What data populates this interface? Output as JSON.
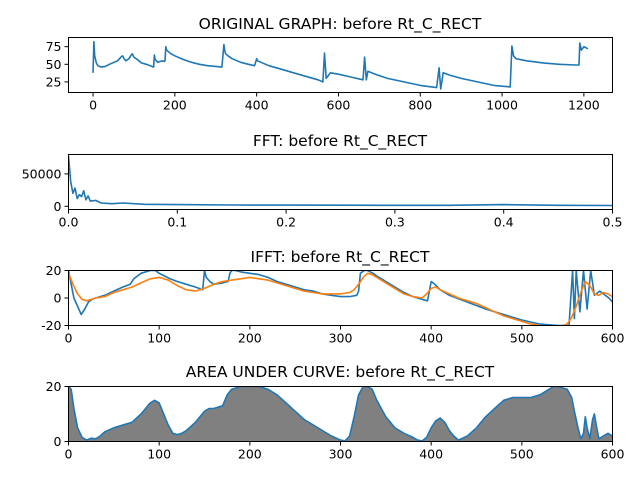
{
  "chart_data": [
    {
      "type": "line",
      "title": "ORIGINAL GRAPH: before Rt_C_RECT",
      "xlim": [
        -60,
        1270
      ],
      "ylim": [
        10,
        88
      ],
      "xticks": [
        0,
        200,
        400,
        600,
        800,
        1000,
        1200
      ],
      "yticks": [
        25,
        50,
        75
      ],
      "series": [
        {
          "color": "#1f77b4",
          "x": [
            0,
            2,
            4,
            8,
            12,
            20,
            30,
            40,
            52,
            60,
            68,
            72,
            76,
            80,
            88,
            92,
            96,
            100,
            108,
            118,
            130,
            140,
            148,
            150,
            152,
            158,
            164,
            170,
            174,
            176,
            178,
            180,
            190,
            200,
            220,
            240,
            260,
            280,
            300,
            315,
            320,
            322,
            324,
            330,
            340,
            360,
            380,
            395,
            400,
            402,
            410,
            430,
            460,
            490,
            520,
            550,
            562,
            566,
            570,
            580,
            600,
            630,
            660,
            664,
            668,
            672,
            690,
            720,
            760,
            800,
            840,
            846,
            850,
            856,
            870,
            900,
            940,
            980,
            1020,
            1024,
            1028,
            1034,
            1060,
            1100,
            1140,
            1180,
            1188,
            1190,
            1194,
            1200,
            1210
          ],
          "y": [
            38,
            82,
            62,
            52,
            48,
            46,
            47,
            50,
            53,
            55,
            60,
            62,
            58,
            55,
            58,
            62,
            65,
            60,
            57,
            52,
            50,
            48,
            46,
            63,
            57,
            53,
            54,
            55,
            54,
            55,
            75,
            70,
            65,
            62,
            57,
            53,
            50,
            48,
            47,
            46,
            78,
            70,
            65,
            62,
            58,
            53,
            50,
            48,
            58,
            55,
            53,
            48,
            43,
            38,
            33,
            28,
            25,
            66,
            30,
            38,
            36,
            32,
            28,
            60,
            28,
            40,
            36,
            30,
            25,
            20,
            17,
            45,
            15,
            38,
            35,
            30,
            25,
            20,
            18,
            76,
            62,
            58,
            55,
            52,
            50,
            49,
            49,
            80,
            70,
            75,
            72
          ]
        }
      ]
    },
    {
      "type": "line",
      "title": "FFT: before Rt_C_RECT",
      "xlim": [
        0,
        0.5
      ],
      "ylim": [
        -5000,
        80000
      ],
      "xticks": [
        0.0,
        0.1,
        0.2,
        0.3,
        0.4,
        0.5
      ],
      "yticks": [
        0,
        50000
      ],
      "series": [
        {
          "color": "#1f77b4",
          "x": [
            0.0,
            0.002,
            0.004,
            0.006,
            0.008,
            0.01,
            0.012,
            0.014,
            0.016,
            0.018,
            0.02,
            0.025,
            0.03,
            0.04,
            0.05,
            0.07,
            0.1,
            0.15,
            0.2,
            0.25,
            0.3,
            0.35,
            0.4,
            0.45,
            0.5
          ],
          "y": [
            78000,
            38000,
            20000,
            28000,
            12000,
            18000,
            15000,
            24000,
            10000,
            16000,
            8000,
            9000,
            5000,
            4000,
            5000,
            3000,
            2500,
            2000,
            1800,
            1600,
            1500,
            1500,
            2500,
            1500,
            1200
          ]
        }
      ]
    },
    {
      "type": "line",
      "title": "IFFT: before Rt_C_RECT",
      "xlim": [
        0,
        600
      ],
      "ylim": [
        -20,
        20
      ],
      "xticks": [
        0,
        100,
        200,
        300,
        400,
        500,
        600
      ],
      "yticks": [
        -20,
        0,
        20
      ],
      "series": [
        {
          "color": "#1f77b4",
          "x": [
            0,
            3,
            6,
            10,
            14,
            18,
            22,
            26,
            30,
            40,
            50,
            60,
            68,
            72,
            76,
            80,
            90,
            96,
            100,
            106,
            112,
            120,
            130,
            140,
            148,
            150,
            152,
            156,
            160,
            170,
            176,
            178,
            180,
            184,
            190,
            200,
            210,
            220,
            230,
            240,
            250,
            260,
            270,
            280,
            290,
            300,
            310,
            318,
            320,
            322,
            326,
            330,
            336,
            340,
            350,
            360,
            370,
            380,
            390,
            396,
            400,
            404,
            410,
            420,
            440,
            460,
            480,
            500,
            520,
            540,
            552,
            556,
            558,
            560,
            564,
            568,
            572,
            576,
            580,
            586,
            590,
            596,
            600
          ],
          "y": [
            20,
            10,
            0,
            -6,
            -12,
            -8,
            -3,
            -1,
            0,
            2,
            5,
            8,
            10,
            14,
            16,
            18,
            20,
            20,
            18,
            16,
            14,
            12,
            10,
            8,
            6,
            20,
            15,
            12,
            10,
            11,
            12,
            18,
            20,
            20,
            19,
            18,
            17,
            15,
            12,
            10,
            8,
            6,
            5,
            3,
            2,
            1,
            1,
            2,
            5,
            18,
            20,
            20,
            18,
            16,
            12,
            8,
            4,
            1,
            -1,
            -2,
            12,
            10,
            6,
            2,
            -3,
            -8,
            -12,
            -16,
            -19,
            -20,
            -20,
            20,
            -15,
            20,
            -10,
            20,
            -8,
            20,
            2,
            5,
            3,
            0,
            -3
          ]
        },
        {
          "color": "#ff7f0e",
          "x": [
            0,
            5,
            10,
            15,
            20,
            25,
            30,
            40,
            50,
            60,
            70,
            80,
            90,
            100,
            110,
            120,
            130,
            140,
            150,
            160,
            170,
            180,
            190,
            200,
            210,
            220,
            230,
            240,
            250,
            260,
            270,
            280,
            290,
            300,
            310,
            315,
            320,
            325,
            330,
            335,
            340,
            350,
            360,
            370,
            380,
            390,
            395,
            400,
            405,
            410,
            420,
            430,
            440,
            450,
            460,
            470,
            480,
            490,
            500,
            510,
            520,
            530,
            540,
            550,
            555,
            560,
            565,
            570,
            575,
            580,
            585,
            590,
            595,
            600
          ],
          "y": [
            18,
            10,
            3,
            -1,
            -2,
            -1,
            0,
            1,
            4,
            6,
            8,
            11,
            14,
            15,
            13,
            9,
            6,
            5,
            7,
            10,
            12,
            13,
            14,
            15,
            14,
            13,
            11,
            9,
            7,
            5,
            4,
            3,
            3,
            3,
            4,
            6,
            10,
            15,
            18,
            17,
            15,
            11,
            7,
            3,
            1,
            0,
            3,
            7,
            8,
            6,
            3,
            0,
            -2,
            -4,
            -7,
            -10,
            -13,
            -15,
            -17,
            -19,
            -20,
            -21,
            -21,
            -19,
            -14,
            -6,
            4,
            12,
            9,
            3,
            2,
            4,
            3,
            1
          ]
        }
      ]
    },
    {
      "type": "area",
      "title": "AREA UNDER CURVE: before Rt_C_RECT",
      "xlim": [
        0,
        600
      ],
      "ylim": [
        0,
        20
      ],
      "xticks": [
        0,
        100,
        200,
        300,
        400,
        500,
        600
      ],
      "yticks": [
        0,
        20
      ],
      "fill_color": "#808080",
      "series": [
        {
          "color": "#1f77b4",
          "x": [
            0,
            3,
            6,
            10,
            15,
            20,
            25,
            30,
            35,
            40,
            50,
            60,
            70,
            80,
            85,
            90,
            95,
            100,
            105,
            110,
            115,
            120,
            125,
            130,
            140,
            150,
            155,
            160,
            170,
            175,
            180,
            190,
            200,
            210,
            220,
            230,
            240,
            250,
            260,
            270,
            280,
            290,
            300,
            305,
            310,
            315,
            320,
            325,
            330,
            335,
            340,
            350,
            360,
            370,
            380,
            385,
            390,
            395,
            400,
            405,
            410,
            415,
            420,
            425,
            430,
            440,
            450,
            460,
            470,
            480,
            490,
            500,
            510,
            520,
            530,
            535,
            540,
            550,
            555,
            558,
            562,
            565,
            568,
            570,
            572,
            575,
            578,
            580,
            582,
            585,
            590,
            595,
            600
          ],
          "y": [
            20,
            19,
            12,
            5,
            1.5,
            0.5,
            1.2,
            1.0,
            2,
            3.5,
            5,
            6,
            7,
            10,
            12,
            14,
            15,
            14,
            10,
            6,
            3,
            2.5,
            3,
            4,
            7,
            11,
            12,
            12,
            13,
            17,
            19,
            20,
            20,
            20,
            19,
            17,
            14,
            11,
            8,
            6,
            4,
            2,
            0.5,
            0.2,
            2,
            9,
            17,
            20,
            20,
            19,
            15,
            9,
            5,
            3,
            1.5,
            0.5,
            0.2,
            1.5,
            5,
            7.5,
            8.5,
            7,
            4,
            2,
            0.5,
            2,
            5,
            9,
            12,
            15,
            16,
            16,
            16,
            17,
            19,
            20,
            20,
            19,
            16,
            11,
            5,
            1,
            3,
            9,
            5,
            1,
            8,
            10,
            6,
            1,
            2,
            3,
            2
          ]
        }
      ]
    }
  ]
}
